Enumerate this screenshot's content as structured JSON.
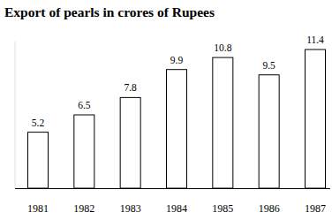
{
  "chart_data": {
    "type": "bar",
    "title": "Export of pearls in crores of Rupees",
    "categories": [
      "1981",
      "1982",
      "1983",
      "1984",
      "1985",
      "1986",
      "1987"
    ],
    "values": [
      5.2,
      6.5,
      7.8,
      9.9,
      10.8,
      9.5,
      11.4
    ],
    "color": "#ffffff",
    "ylim": [
      1,
      12
    ],
    "data_labels": true,
    "tick_labels": "x",
    "grid": false
  }
}
